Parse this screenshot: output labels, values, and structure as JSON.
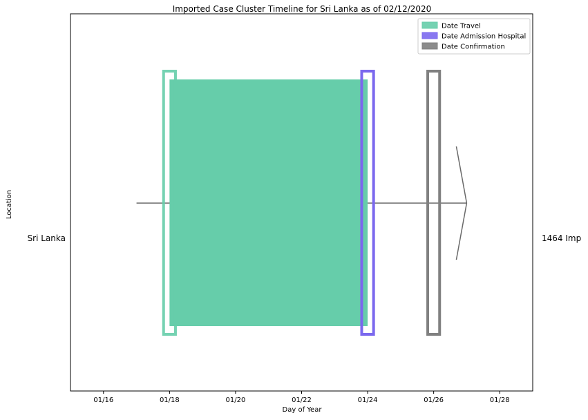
{
  "chart_data": {
    "type": "timeline",
    "title": "Imported Case Cluster Timeline for Sri Lanka as of 02/12/2020",
    "xlabel": "Day of Year",
    "ylabel": "Location",
    "x_ticks": [
      "01/16",
      "01/18",
      "01/20",
      "01/22",
      "01/24",
      "01/26",
      "01/28"
    ],
    "x_tick_values": [
      "2020-01-16",
      "2020-01-18",
      "2020-01-20",
      "2020-01-22",
      "2020-01-24",
      "2020-01-26",
      "2020-01-28"
    ],
    "xlim": [
      "2020-01-15",
      "2020-01-29"
    ],
    "y_categories": [
      "Sri Lanka"
    ],
    "right_label": "1464 Imp",
    "legend": {
      "placement": "top-right",
      "entries": [
        {
          "name": "Date Travel",
          "color": "#66cdaa"
        },
        {
          "name": "Date Admission Hospital",
          "color": "#7b68ee"
        },
        {
          "name": "Date Confirmation",
          "color": "#808080"
        }
      ]
    },
    "series": [
      {
        "name": "Date Travel",
        "type": "span",
        "start": "2020-01-18",
        "end": "2020-01-24",
        "color": "#66cdaa"
      },
      {
        "name": "Date Travel",
        "type": "marker",
        "date": "2020-01-18",
        "color": "#66cdaa"
      },
      {
        "name": "Date Admission Hospital",
        "type": "marker",
        "date": "2020-01-24",
        "color": "#7b68ee"
      },
      {
        "name": "Date Confirmation",
        "type": "marker",
        "date": "2020-01-26",
        "color": "#808080"
      }
    ],
    "timeline_arrow": {
      "start": "2020-01-17",
      "end": "2020-01-27",
      "color": "#696969"
    }
  }
}
